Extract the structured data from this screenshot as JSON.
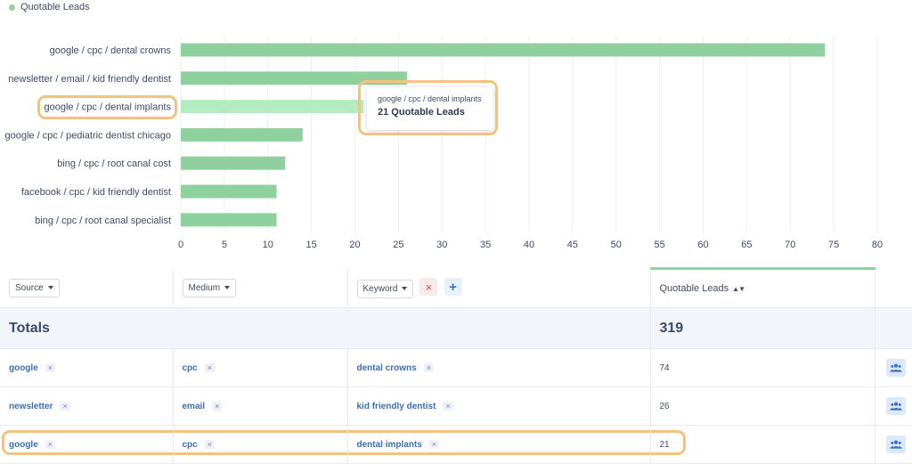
{
  "legend": {
    "label": "Quotable Leads",
    "color": "#8fd19e"
  },
  "chart_data": {
    "type": "bar",
    "orientation": "horizontal",
    "categories": [
      "google / cpc / dental crowns",
      "newsletter / email / kid friendly dentist",
      "google / cpc / dental implants",
      "google / cpc / pediatric dentist chicago",
      "bing / cpc / root canal cost",
      "facebook / cpc / kid friendly dentist",
      "bing / cpc / root canal specialist"
    ],
    "series": [
      {
        "name": "Quotable Leads",
        "values": [
          74,
          26,
          21,
          14,
          12,
          11,
          11
        ]
      }
    ],
    "highlighted_index": 2,
    "xlim": [
      0,
      80
    ],
    "xticks": [
      "0",
      "5",
      "10",
      "15",
      "20",
      "25",
      "30",
      "35",
      "40",
      "45",
      "50",
      "55",
      "60",
      "65",
      "70",
      "75",
      "80"
    ],
    "grid": true,
    "bar_color": "#8fd19e",
    "highlight_color": "#b3ecc0"
  },
  "tooltip": {
    "label": "google / cpc / dental implants",
    "value": "21 Quotable Leads"
  },
  "table": {
    "columns": {
      "source": "Source",
      "medium": "Medium",
      "keyword": "Keyword",
      "metric": "Quotable Leads"
    },
    "totals": {
      "label": "Totals",
      "value": "319"
    },
    "rows": [
      {
        "source": "google",
        "medium": "cpc",
        "keyword": "dental crowns",
        "value": "74"
      },
      {
        "source": "newsletter",
        "medium": "email",
        "keyword": "kid friendly dentist",
        "value": "26"
      },
      {
        "source": "google",
        "medium": "cpc",
        "keyword": "dental implants",
        "value": "21"
      }
    ],
    "remove_glyph": "×",
    "add_glyph": "+"
  },
  "colors": {
    "accent": "#8fd19e",
    "highlight_border": "#f2c27e",
    "link": "#3d6db5",
    "danger": "#e04a4a"
  }
}
